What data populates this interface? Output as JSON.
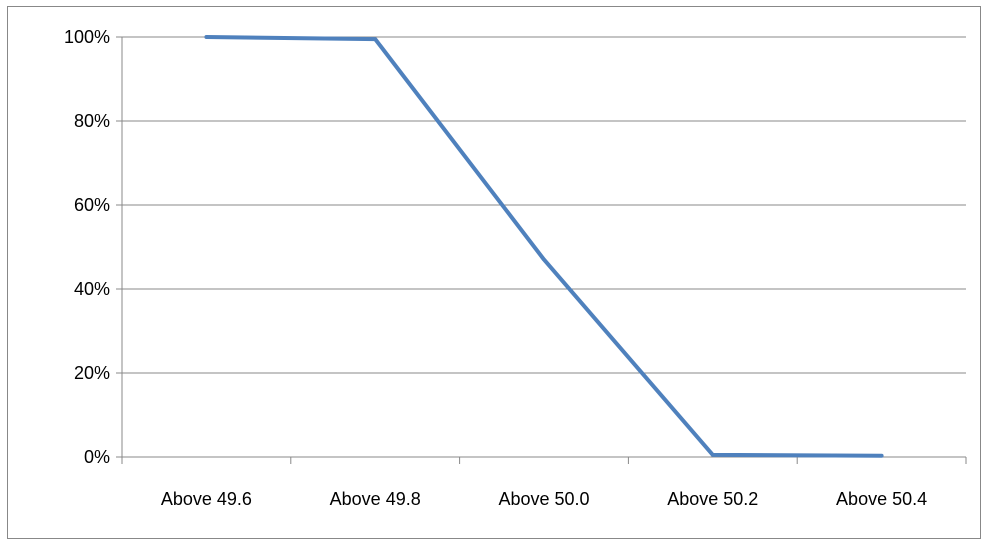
{
  "chart_data": {
    "type": "line",
    "title": "",
    "xlabel": "",
    "ylabel": "",
    "categories": [
      "Above 49.6",
      "Above 49.8",
      "Above 50.0",
      "Above 50.2",
      "Above 50.4"
    ],
    "series": [
      {
        "values": [
          100,
          99.5,
          47,
          0.5,
          0.3
        ]
      }
    ],
    "ylim": [
      0,
      100
    ],
    "y_ticks": [
      0,
      20,
      40,
      60,
      80,
      100
    ],
    "y_tick_format": "percent",
    "grid": "horizontal",
    "legend": "none",
    "colors": {
      "line": "#4F81BD",
      "grid": "#888888",
      "axis": "#888888"
    }
  }
}
